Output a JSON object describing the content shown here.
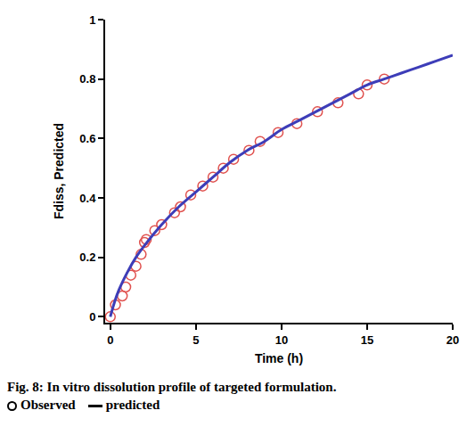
{
  "chart_data": {
    "type": "scatter",
    "title": "Fig. 8: In vitro dissolution profile of targeted formulation.",
    "xlabel": "Time (h)",
    "ylabel": "Fdiss, Predicted",
    "xlim": [
      -0.3,
      20
    ],
    "xticks": [
      0,
      5,
      10,
      15,
      20
    ],
    "ylim": [
      -0.02,
      1
    ],
    "yticks": [
      0,
      0.2,
      0.4,
      0.6,
      0.8,
      1
    ],
    "grid": false,
    "series": [
      {
        "name": "Observed",
        "type": "scatter",
        "color": "#e0524f",
        "marker": "circle-open",
        "x": [
          0,
          0.3,
          0.7,
          0.9,
          1.2,
          1.5,
          1.8,
          2.0,
          2.1,
          2.6,
          3.0,
          3.75,
          4.1,
          4.7,
          5.4,
          6.0,
          6.6,
          7.2,
          8.1,
          8.75,
          9.8,
          10.9,
          12.1,
          13.3,
          14.5,
          15.0,
          16.0
        ],
        "values": [
          0,
          0.04,
          0.07,
          0.1,
          0.14,
          0.17,
          0.21,
          0.25,
          0.26,
          0.29,
          0.31,
          0.35,
          0.37,
          0.41,
          0.44,
          0.47,
          0.5,
          0.53,
          0.56,
          0.59,
          0.62,
          0.65,
          0.69,
          0.72,
          0.75,
          0.78,
          0.8
        ]
      },
      {
        "name": "predicted",
        "type": "line",
        "color": "#3d3db8",
        "line_style": "solid",
        "x": [
          0,
          0.25,
          0.5,
          1,
          1.5,
          2,
          3,
          4,
          5,
          6,
          7,
          8,
          9,
          10,
          11,
          12,
          13,
          14,
          15,
          16,
          17,
          18,
          19,
          20
        ],
        "values": [
          0,
          0.05,
          0.09,
          0.15,
          0.2,
          0.24,
          0.31,
          0.37,
          0.42,
          0.47,
          0.52,
          0.56,
          0.59,
          0.63,
          0.66,
          0.69,
          0.72,
          0.75,
          0.78,
          0.8,
          0.82,
          0.84,
          0.86,
          0.88
        ]
      }
    ]
  }
}
